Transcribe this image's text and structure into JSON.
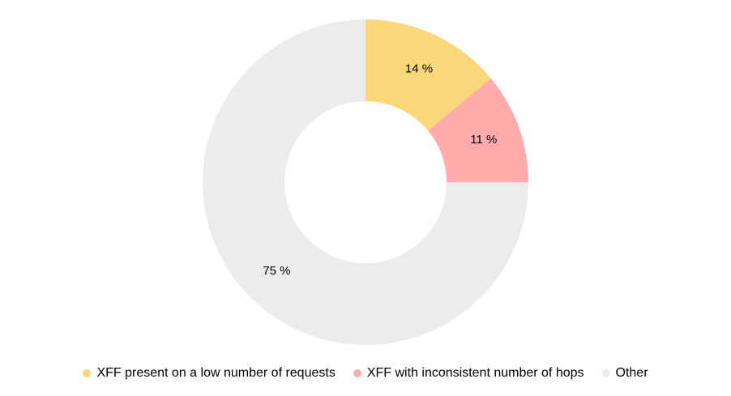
{
  "chart_data": {
    "type": "pie",
    "subtype": "donut",
    "unit": "%",
    "start_angle_deg": 0,
    "direction": "clockwise",
    "legend_position": "bottom",
    "background_color": "#ffffff",
    "label_color": "#000000",
    "slices": [
      {
        "name": "XFF present on a low number of requests",
        "value": 14,
        "label": "14 %",
        "color": "#FAD778"
      },
      {
        "name": "XFF with inconsistent number of hops",
        "value": 11,
        "label": "11 %",
        "color": "#FFABAB"
      },
      {
        "name": "Other",
        "value": 75,
        "label": "75 %",
        "color": "#ECECEC"
      }
    ]
  }
}
